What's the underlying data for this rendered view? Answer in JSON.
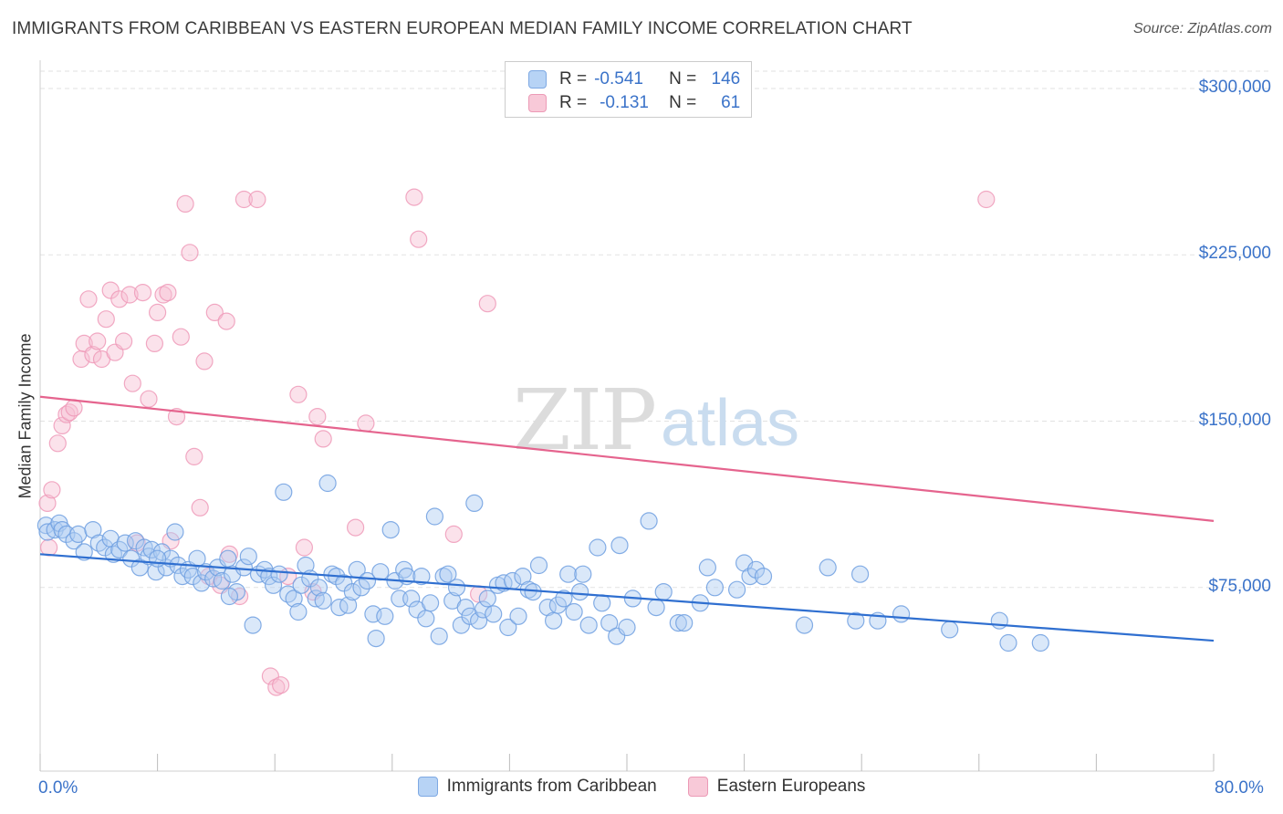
{
  "header": {
    "title": "IMMIGRANTS FROM CARIBBEAN VS EASTERN EUROPEAN MEDIAN FAMILY INCOME CORRELATION CHART",
    "source": "Source: ZipAtlas.com"
  },
  "watermark": {
    "zip": "ZIP",
    "atlas": "atlas"
  },
  "legend_top": {
    "rows": [
      {
        "r_label": "R =",
        "r_value": "-0.541",
        "n_label": "N =",
        "n_value": "146"
      },
      {
        "r_label": "R =",
        "r_value": "-0.131",
        "n_label": "N =",
        "n_value": "61"
      }
    ]
  },
  "legend_bottom": {
    "items": [
      "Immigrants from Caribbean",
      "Eastern Europeans"
    ]
  },
  "axes": {
    "ylabel": "Median Family Income",
    "x_min_label": "0.0%",
    "x_max_label": "80.0%",
    "y_ticks": [
      "$300,000",
      "$225,000",
      "$150,000",
      "$75,000"
    ]
  },
  "colors": {
    "blue": "#6f9fe0",
    "blue_line": "#2f6fd0",
    "pink": "#ee9ab8",
    "pink_line": "#e5648e",
    "tick_text": "#3b73c9"
  },
  "chart_data": {
    "type": "scatter",
    "title": "IMMIGRANTS FROM CARIBBEAN VS EASTERN EUROPEAN MEDIAN FAMILY INCOME CORRELATION CHART",
    "xlabel": "",
    "ylabel": "Median Family Income",
    "xlim": [
      0,
      80
    ],
    "ylim": [
      0,
      308000
    ],
    "x_unit": "%",
    "yticks": [
      75000,
      150000,
      225000,
      300000
    ],
    "grid": "horizontal dashed",
    "series": [
      {
        "name": "Immigrants from Caribbean",
        "color": "#6f9fe0",
        "r": -0.541,
        "n": 146,
        "trend": {
          "x": [
            0,
            80
          ],
          "y": [
            90000,
            51000
          ]
        },
        "points": [
          [
            0.4,
            103000
          ],
          [
            0.5,
            100000
          ],
          [
            1.0,
            101000
          ],
          [
            1.3,
            104000
          ],
          [
            1.5,
            101000
          ],
          [
            1.8,
            99000
          ],
          [
            2.3,
            96000
          ],
          [
            2.6,
            99000
          ],
          [
            3.0,
            91000
          ],
          [
            3.6,
            101000
          ],
          [
            4.0,
            95000
          ],
          [
            4.4,
            93000
          ],
          [
            4.8,
            97000
          ],
          [
            5.0,
            90000
          ],
          [
            5.4,
            92000
          ],
          [
            5.8,
            95000
          ],
          [
            6.2,
            88000
          ],
          [
            6.5,
            96000
          ],
          [
            6.8,
            84000
          ],
          [
            7.1,
            93000
          ],
          [
            7.4,
            89000
          ],
          [
            7.6,
            92000
          ],
          [
            7.9,
            82000
          ],
          [
            8.3,
            91000
          ],
          [
            8.6,
            84000
          ],
          [
            8.9,
            88000
          ],
          [
            9.2,
            100000
          ],
          [
            9.4,
            85000
          ],
          [
            9.7,
            80000
          ],
          [
            10.1,
            83000
          ],
          [
            10.4,
            80000
          ],
          [
            10.7,
            88000
          ],
          [
            11.0,
            77000
          ],
          [
            11.3,
            82000
          ],
          [
            11.8,
            79000
          ],
          [
            12.1,
            84000
          ],
          [
            12.4,
            78000
          ],
          [
            12.8,
            88000
          ],
          [
            13.1,
            81000
          ],
          [
            13.4,
            73000
          ],
          [
            13.9,
            84000
          ],
          [
            14.2,
            89000
          ],
          [
            14.5,
            58000
          ],
          [
            14.9,
            81000
          ],
          [
            15.3,
            83000
          ],
          [
            15.6,
            80000
          ],
          [
            15.9,
            76000
          ],
          [
            16.3,
            81000
          ],
          [
            16.6,
            118000
          ],
          [
            16.9,
            72000
          ],
          [
            17.3,
            70000
          ],
          [
            17.6,
            64000
          ],
          [
            17.8,
            76000
          ],
          [
            18.1,
            85000
          ],
          [
            18.4,
            79000
          ],
          [
            18.8,
            70000
          ],
          [
            19.0,
            75000
          ],
          [
            19.3,
            69000
          ],
          [
            19.6,
            122000
          ],
          [
            19.9,
            81000
          ],
          [
            20.2,
            80000
          ],
          [
            20.4,
            66000
          ],
          [
            20.7,
            77000
          ],
          [
            21.0,
            67000
          ],
          [
            21.3,
            73000
          ],
          [
            21.6,
            83000
          ],
          [
            21.9,
            75000
          ],
          [
            22.3,
            78000
          ],
          [
            22.7,
            63000
          ],
          [
            22.9,
            52000
          ],
          [
            23.2,
            82000
          ],
          [
            23.5,
            62000
          ],
          [
            23.9,
            101000
          ],
          [
            24.2,
            78000
          ],
          [
            24.5,
            70000
          ],
          [
            24.8,
            83000
          ],
          [
            25.0,
            80000
          ],
          [
            25.3,
            70000
          ],
          [
            25.7,
            65000
          ],
          [
            26.0,
            80000
          ],
          [
            26.3,
            61000
          ],
          [
            26.6,
            68000
          ],
          [
            26.9,
            107000
          ],
          [
            27.2,
            53000
          ],
          [
            27.5,
            80000
          ],
          [
            27.8,
            81000
          ],
          [
            28.1,
            69000
          ],
          [
            28.4,
            75000
          ],
          [
            28.7,
            58000
          ],
          [
            29.0,
            66000
          ],
          [
            29.3,
            62000
          ],
          [
            29.6,
            113000
          ],
          [
            29.9,
            60000
          ],
          [
            30.2,
            65000
          ],
          [
            30.5,
            70000
          ],
          [
            30.9,
            63000
          ],
          [
            31.2,
            76000
          ],
          [
            31.6,
            77000
          ],
          [
            31.9,
            57000
          ],
          [
            32.2,
            78000
          ],
          [
            32.6,
            62000
          ],
          [
            32.9,
            80000
          ],
          [
            33.3,
            74000
          ],
          [
            33.6,
            73000
          ],
          [
            34.0,
            85000
          ],
          [
            34.6,
            66000
          ],
          [
            35.0,
            60000
          ],
          [
            35.3,
            67000
          ],
          [
            35.7,
            70000
          ],
          [
            36.0,
            81000
          ],
          [
            36.4,
            64000
          ],
          [
            36.8,
            73000
          ],
          [
            37.0,
            81000
          ],
          [
            37.4,
            58000
          ],
          [
            38.0,
            93000
          ],
          [
            38.3,
            68000
          ],
          [
            38.8,
            59000
          ],
          [
            39.3,
            53000
          ],
          [
            39.5,
            94000
          ],
          [
            40.0,
            57000
          ],
          [
            40.4,
            70000
          ],
          [
            41.5,
            105000
          ],
          [
            42.0,
            66000
          ],
          [
            42.5,
            73000
          ],
          [
            43.5,
            59000
          ],
          [
            43.9,
            59000
          ],
          [
            45.0,
            68000
          ],
          [
            45.5,
            84000
          ],
          [
            46.0,
            75000
          ],
          [
            47.5,
            74000
          ],
          [
            48.0,
            86000
          ],
          [
            48.4,
            80000
          ],
          [
            48.8,
            83000
          ],
          [
            49.3,
            80000
          ],
          [
            52.1,
            58000
          ],
          [
            53.7,
            84000
          ],
          [
            55.6,
            60000
          ],
          [
            55.9,
            81000
          ],
          [
            57.1,
            60000
          ],
          [
            58.7,
            63000
          ],
          [
            62.0,
            56000
          ],
          [
            65.4,
            60000
          ],
          [
            66.0,
            50000
          ],
          [
            68.2,
            50000
          ],
          [
            8.0,
            88000
          ],
          [
            12.9,
            71000
          ]
        ]
      },
      {
        "name": "Eastern Europeans",
        "color": "#ee9ab8",
        "r": -0.131,
        "n": 61,
        "trend": {
          "x": [
            0,
            80
          ],
          "y": [
            161000,
            105000
          ]
        },
        "points": [
          [
            0.5,
            113000
          ],
          [
            0.6,
            93000
          ],
          [
            0.8,
            119000
          ],
          [
            1.2,
            140000
          ],
          [
            1.5,
            148000
          ],
          [
            1.8,
            153000
          ],
          [
            2.0,
            154000
          ],
          [
            2.3,
            156000
          ],
          [
            2.8,
            178000
          ],
          [
            3.0,
            185000
          ],
          [
            3.3,
            205000
          ],
          [
            3.6,
            180000
          ],
          [
            3.9,
            186000
          ],
          [
            4.2,
            178000
          ],
          [
            4.5,
            196000
          ],
          [
            4.8,
            209000
          ],
          [
            5.1,
            181000
          ],
          [
            5.4,
            205000
          ],
          [
            5.7,
            186000
          ],
          [
            6.1,
            207000
          ],
          [
            6.3,
            167000
          ],
          [
            6.6,
            95000
          ],
          [
            7.0,
            208000
          ],
          [
            7.4,
            160000
          ],
          [
            7.8,
            185000
          ],
          [
            8.0,
            199000
          ],
          [
            8.4,
            207000
          ],
          [
            8.7,
            208000
          ],
          [
            8.9,
            96000
          ],
          [
            9.3,
            152000
          ],
          [
            9.6,
            188000
          ],
          [
            9.9,
            248000
          ],
          [
            10.2,
            226000
          ],
          [
            10.5,
            134000
          ],
          [
            10.9,
            111000
          ],
          [
            11.2,
            177000
          ],
          [
            11.5,
            80000
          ],
          [
            11.9,
            199000
          ],
          [
            12.3,
            76000
          ],
          [
            12.7,
            195000
          ],
          [
            12.9,
            90000
          ],
          [
            13.6,
            71000
          ],
          [
            13.9,
            250000
          ],
          [
            14.8,
            250000
          ],
          [
            15.7,
            35000
          ],
          [
            16.1,
            30000
          ],
          [
            16.4,
            31000
          ],
          [
            16.9,
            80000
          ],
          [
            17.6,
            162000
          ],
          [
            18.0,
            93000
          ],
          [
            18.6,
            73000
          ],
          [
            18.9,
            152000
          ],
          [
            19.3,
            142000
          ],
          [
            21.5,
            102000
          ],
          [
            22.2,
            149000
          ],
          [
            25.5,
            251000
          ],
          [
            25.8,
            232000
          ],
          [
            28.2,
            99000
          ],
          [
            29.9,
            72000
          ],
          [
            30.5,
            203000
          ],
          [
            64.5,
            250000
          ]
        ]
      }
    ]
  }
}
